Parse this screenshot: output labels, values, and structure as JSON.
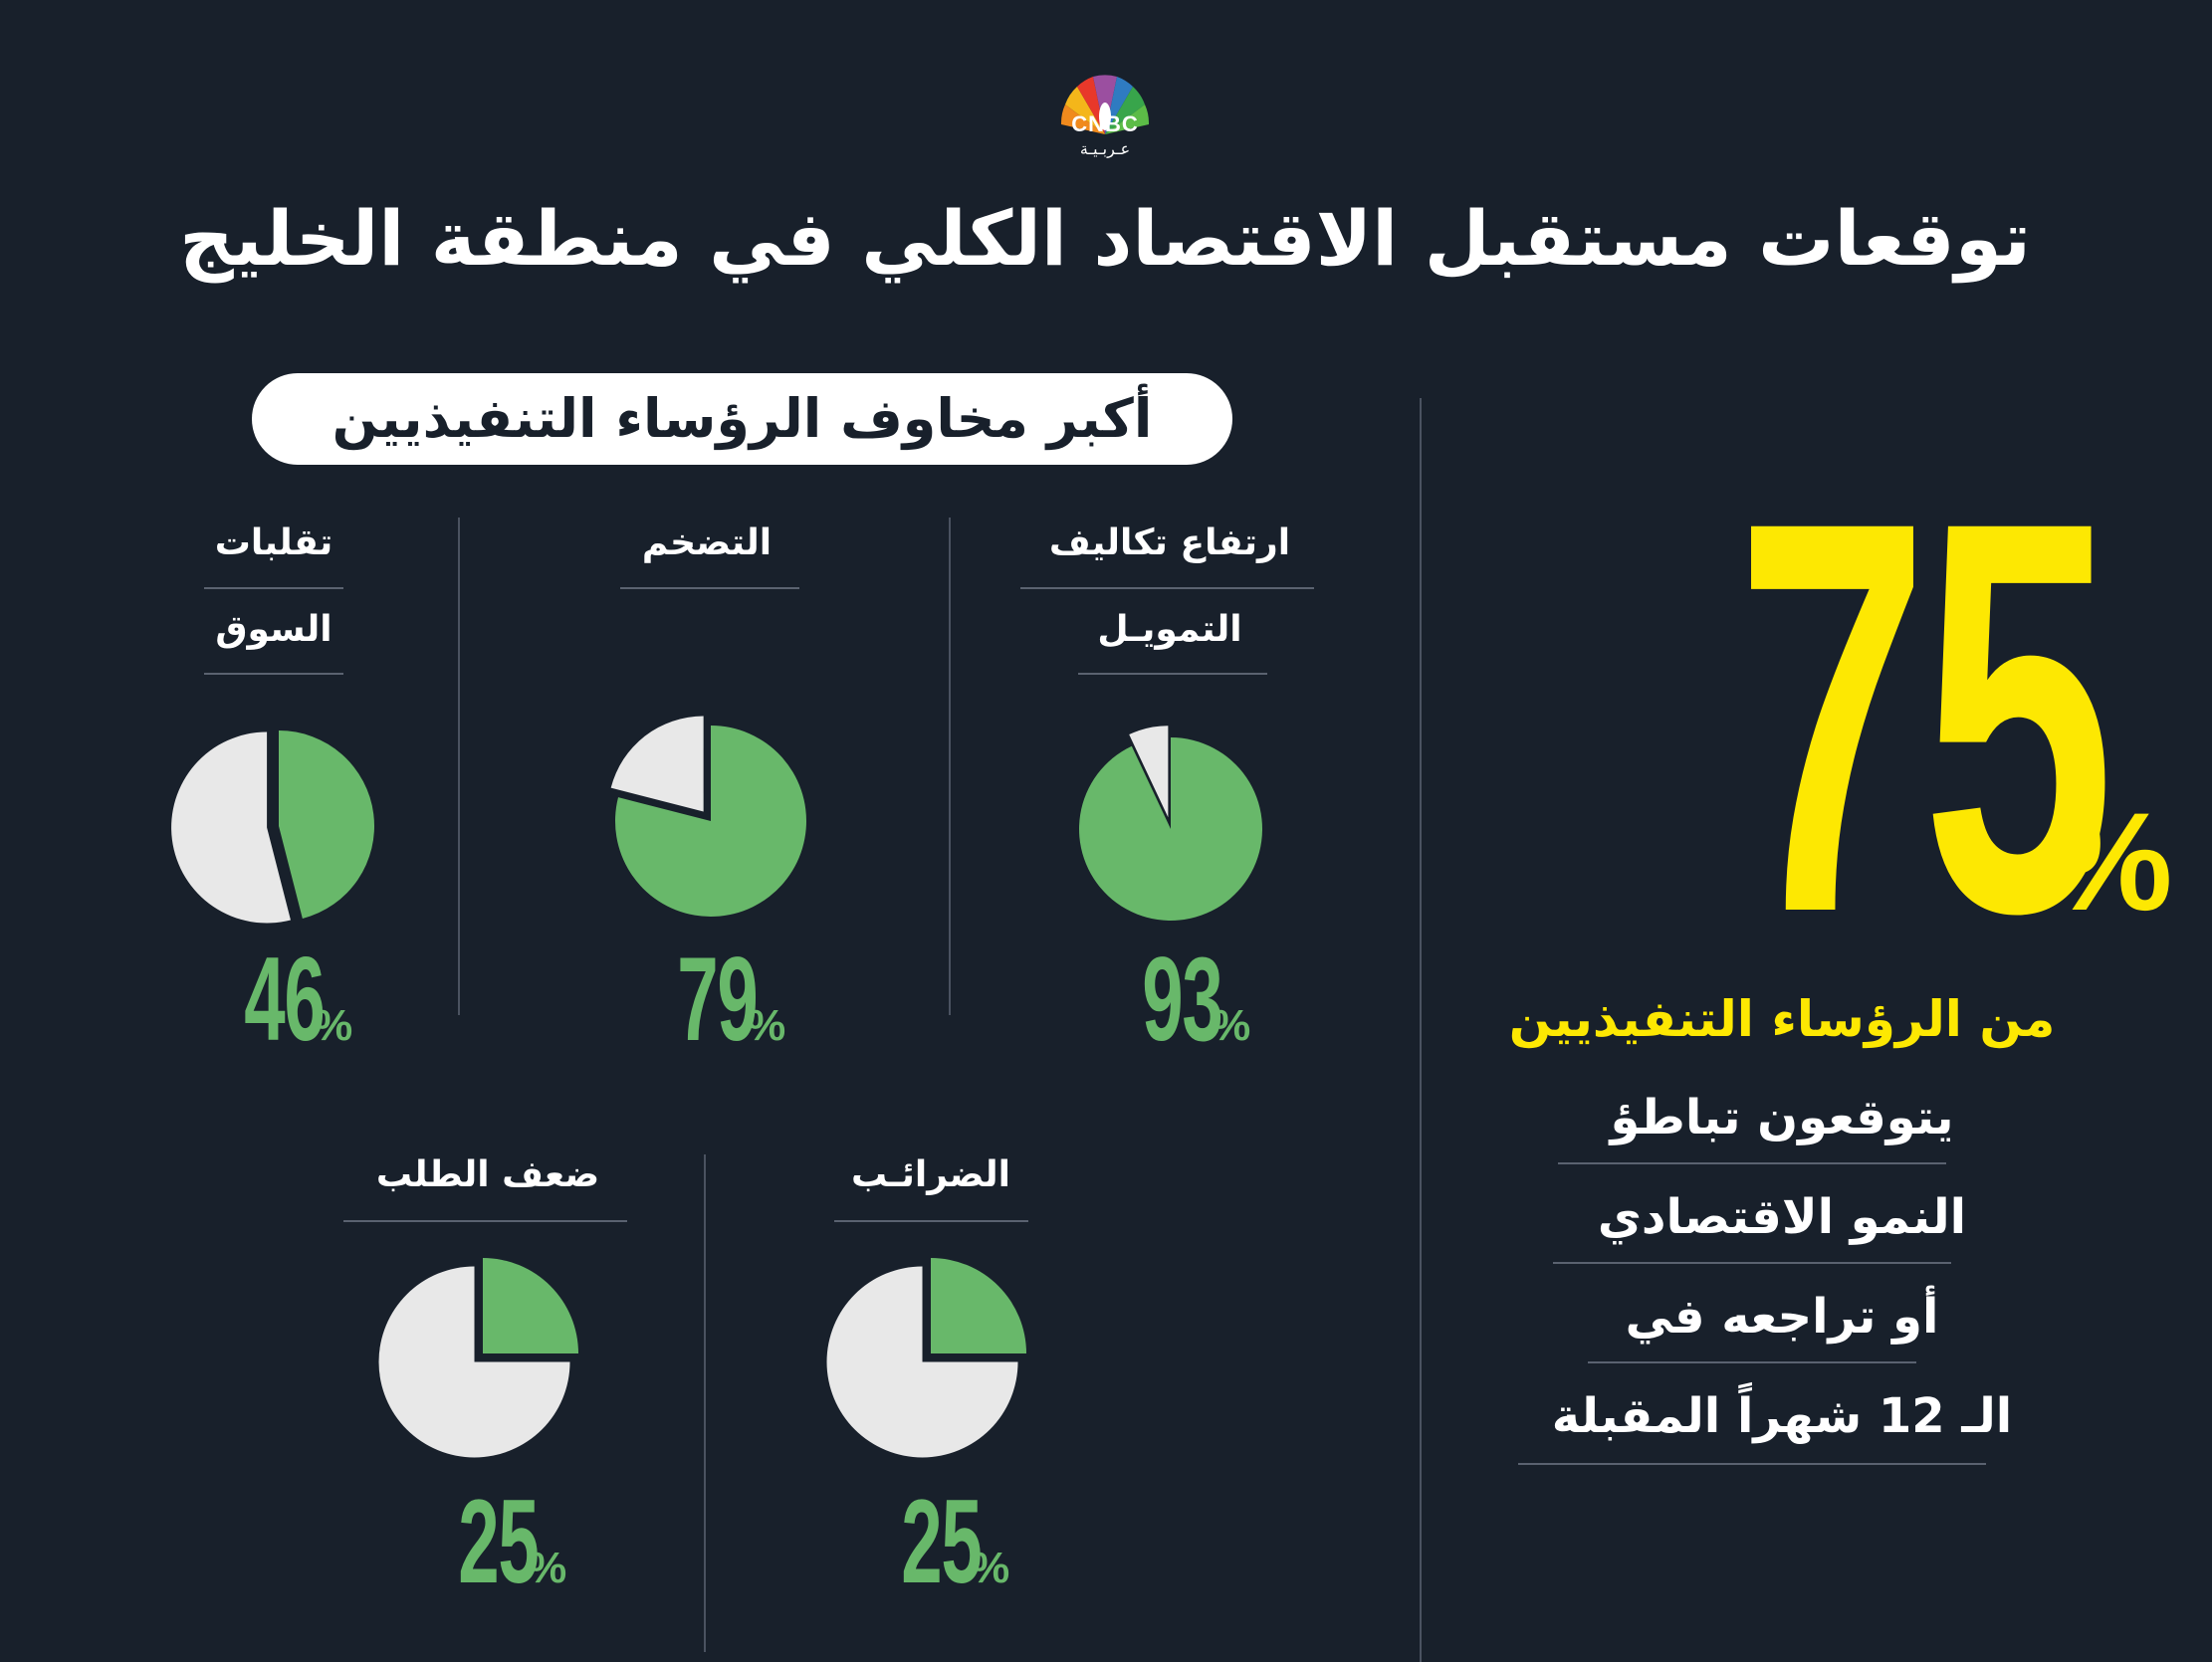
{
  "logo": {
    "name": "CNBC",
    "subtitle": "عـربـيـة"
  },
  "title": "توقعات مستقبل الاقتصاد الكلي في منطقة الخليج",
  "concerns_heading": "أكبر مخاوف الرؤساء التنفيذيين",
  "headline_stat": {
    "value": "75",
    "unit": "%",
    "line1": "من الرؤساء التنفيذيين",
    "line2": "يتوقعون تباطؤ",
    "line3": "النمو الاقتصادي",
    "line4": "أو تراجعه في",
    "line5": "الـ 12 شهراً المقبلة"
  },
  "chart_data": {
    "type": "pie",
    "unit": "%",
    "items": [
      {
        "label_line1": "ارتفاع تكاليف",
        "label_line2": "التمويـل",
        "value": 93
      },
      {
        "label_line1": "التضخم",
        "label_line2": "",
        "value": 79
      },
      {
        "label_line1": "تقلبات",
        "label_line2": "السوق",
        "value": 46
      },
      {
        "label_line1": "الضرائـب",
        "label_line2": "",
        "value": 25
      },
      {
        "label_line1": "ضعف الطلب",
        "label_line2": "",
        "value": 25
      }
    ]
  },
  "colors": {
    "background": "#18202b",
    "highlight": "#68b86a",
    "remainder": "#e8e8e8",
    "accent": "#fde802",
    "text": "#ffffff"
  }
}
